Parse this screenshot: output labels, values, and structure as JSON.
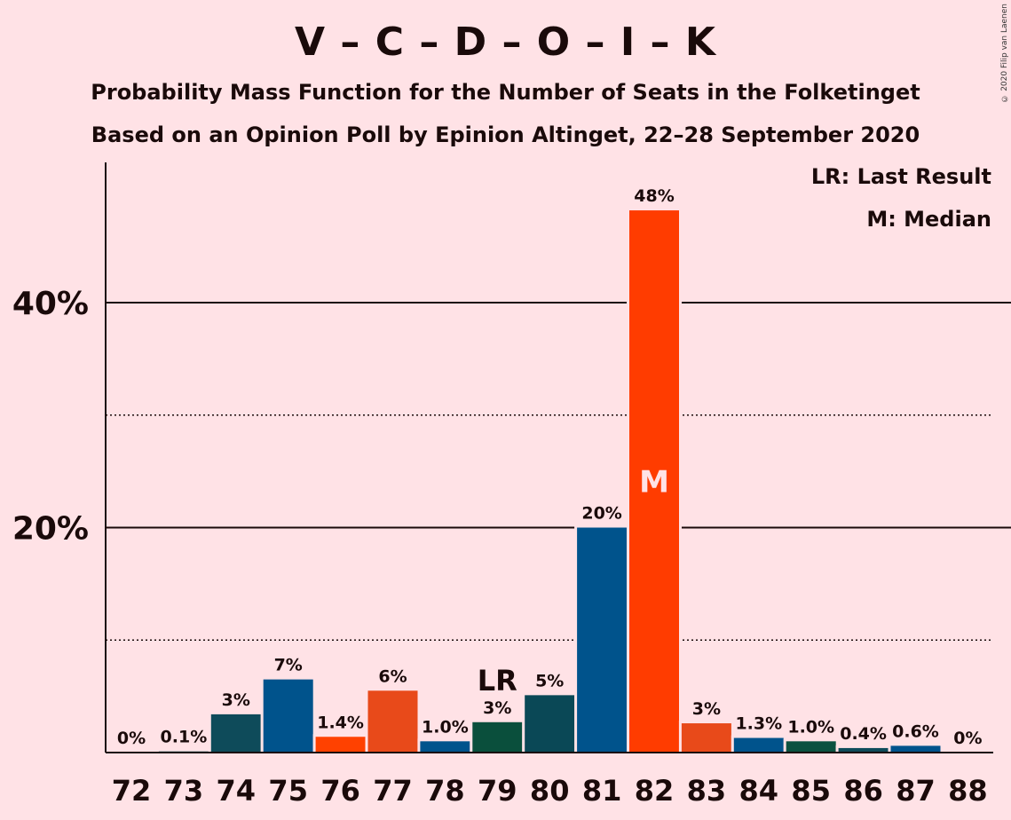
{
  "chart_data": {
    "type": "bar",
    "title": "V – C – D – O – I – K",
    "subtitle1": "Probability Mass Function for the Number of Seats in the Folketinget",
    "subtitle2": "Based on an Opinion Poll by Epinion Altinget, 22–28 September 2020",
    "copyright": "© 2020 Filip van Laenen",
    "legend": {
      "lr": "LR: Last Result",
      "m": "M: Median",
      "placement": "top-right"
    },
    "categories": [
      "72",
      "73",
      "74",
      "75",
      "76",
      "77",
      "78",
      "79",
      "80",
      "81",
      "82",
      "83",
      "84",
      "85",
      "86",
      "87",
      "88"
    ],
    "values": [
      0,
      0.1,
      3.4,
      6.5,
      1.4,
      5.5,
      1.0,
      2.7,
      5.1,
      20.0,
      48.2,
      2.6,
      1.3,
      1.0,
      0.4,
      0.6,
      0
    ],
    "value_labels": [
      "0%",
      "0.1%",
      "3%",
      "7%",
      "1.4%",
      "6%",
      "1.0%",
      "3%",
      "5%",
      "20%",
      "48%",
      "3%",
      "1.3%",
      "1.0%",
      "0.4%",
      "0.6%",
      "0%"
    ],
    "colors": [
      "#00505A",
      "#00505A",
      "#0E4B5A",
      "#00538C",
      "#FF4100",
      "#E84A1A",
      "#00538C",
      "#0A4F3C",
      "#0A4856",
      "#00538C",
      "#FF3C00",
      "#E84A1A",
      "#00538C",
      "#0B5140",
      "#0E4B5A",
      "#00538C",
      "#00538C"
    ],
    "yticks": [
      {
        "value": 20,
        "label": "20%"
      },
      {
        "value": 40,
        "label": "40%"
      }
    ],
    "minor_gridlines": [
      10,
      30
    ],
    "ylim": [
      0,
      52
    ],
    "last_result": {
      "category": "79",
      "label": "LR"
    },
    "median": {
      "category": "82",
      "label": "M"
    },
    "grid": true
  }
}
